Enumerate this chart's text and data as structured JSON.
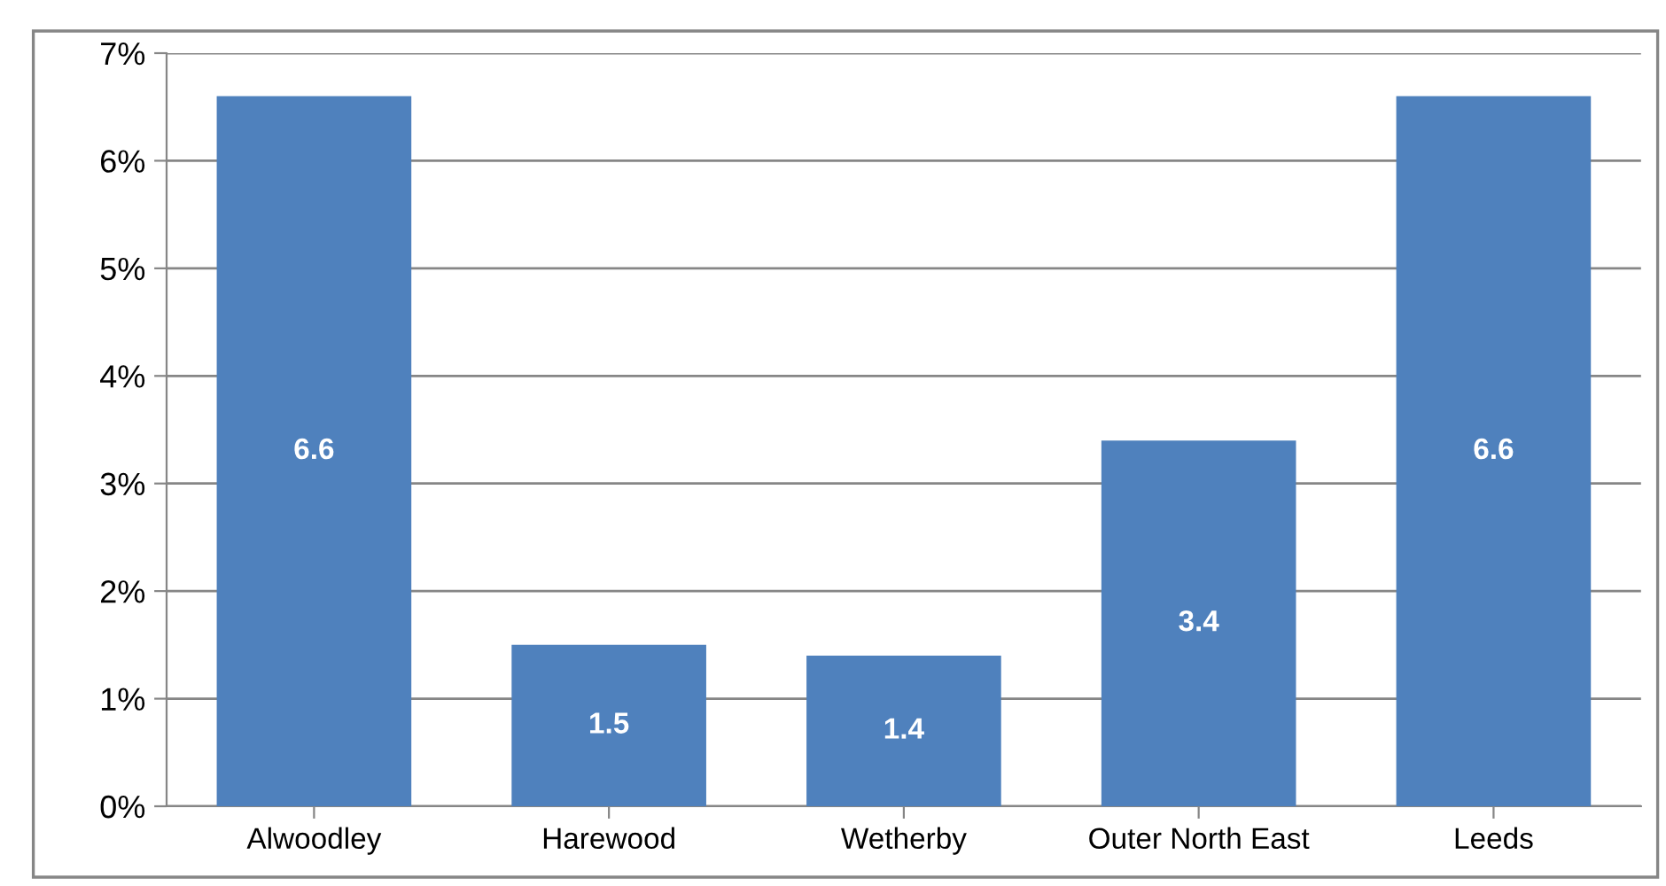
{
  "chart_data": {
    "type": "bar",
    "categories": [
      "Alwoodley",
      "Harewood",
      "Wetherby",
      "Outer North East",
      "Leeds"
    ],
    "values": [
      6.6,
      1.5,
      1.4,
      3.4,
      6.6
    ],
    "color": "#4f81bd",
    "ylim": [
      0,
      7
    ],
    "yticks": [
      {
        "value": 0,
        "label": "0%"
      },
      {
        "value": 1,
        "label": "1%"
      },
      {
        "value": 2,
        "label": "2%"
      },
      {
        "value": 3,
        "label": "3%"
      },
      {
        "value": 4,
        "label": "4%"
      },
      {
        "value": 5,
        "label": "5%"
      },
      {
        "value": 6,
        "label": "6%"
      },
      {
        "value": 7,
        "label": "7%"
      }
    ],
    "grid": "y",
    "data_labels": true
  }
}
